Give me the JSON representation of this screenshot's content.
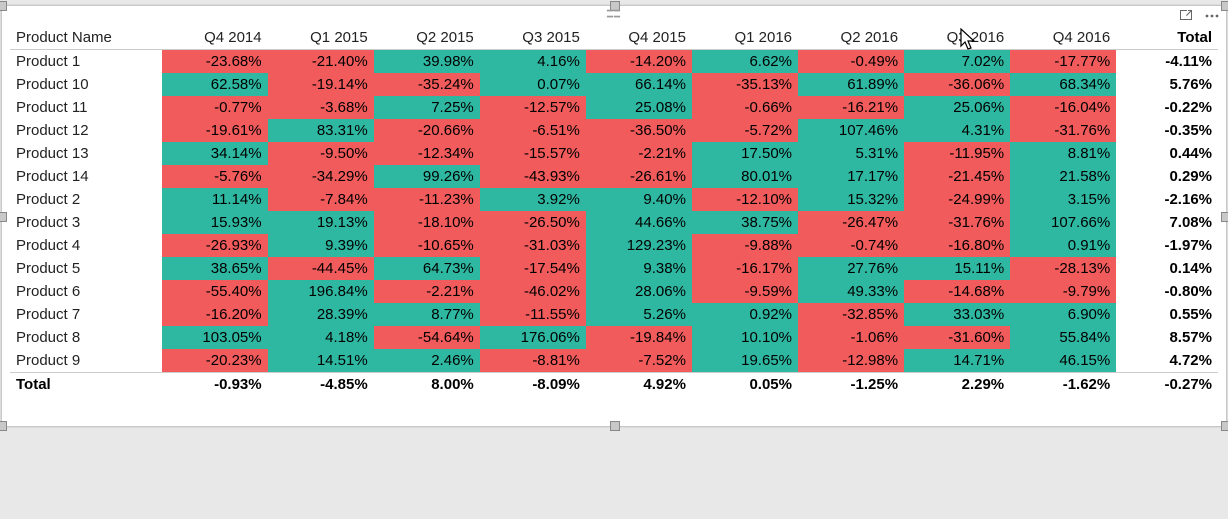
{
  "type": "table",
  "pos_color": "#2fb8a1",
  "neg_color": "#f15b5b",
  "cell_text_color": "#000000",
  "total_text_color": "#000000",
  "row_header": "Product Name",
  "total_label": "Total",
  "columns": [
    "Q4 2014",
    "Q1 2015",
    "Q2 2015",
    "Q3 2015",
    "Q4 2015",
    "Q1 2016",
    "Q2 2016",
    "Q3 2016",
    "Q4 2016"
  ],
  "rows": [
    {
      "name": "Product 1",
      "v": [
        -23.68,
        -21.4,
        39.98,
        4.16,
        -14.2,
        6.62,
        -0.49,
        7.02,
        -17.77
      ],
      "t": -4.11
    },
    {
      "name": "Product 10",
      "v": [
        62.58,
        -19.14,
        -35.24,
        0.07,
        66.14,
        -35.13,
        61.89,
        -36.06,
        68.34
      ],
      "t": 5.76
    },
    {
      "name": "Product 11",
      "v": [
        -0.77,
        -3.68,
        7.25,
        -12.57,
        25.08,
        -0.66,
        -16.21,
        25.06,
        -16.04
      ],
      "t": -0.22
    },
    {
      "name": "Product 12",
      "v": [
        -19.61,
        83.31,
        -20.66,
        -6.51,
        -36.5,
        -5.72,
        107.46,
        4.31,
        -31.76
      ],
      "t": -0.35
    },
    {
      "name": "Product 13",
      "v": [
        34.14,
        -9.5,
        -12.34,
        -15.57,
        -2.21,
        17.5,
        5.31,
        -11.95,
        8.81
      ],
      "t": 0.44
    },
    {
      "name": "Product 14",
      "v": [
        -5.76,
        -34.29,
        99.26,
        -43.93,
        -26.61,
        80.01,
        17.17,
        -21.45,
        21.58
      ],
      "t": 0.29
    },
    {
      "name": "Product 2",
      "v": [
        11.14,
        -7.84,
        -11.23,
        3.92,
        9.4,
        -12.1,
        15.32,
        -24.99,
        3.15
      ],
      "t": -2.16
    },
    {
      "name": "Product 3",
      "v": [
        15.93,
        19.13,
        -18.1,
        -26.5,
        44.66,
        38.75,
        -26.47,
        -31.76,
        107.66
      ],
      "t": 7.08
    },
    {
      "name": "Product 4",
      "v": [
        -26.93,
        9.39,
        -10.65,
        -31.03,
        129.23,
        -9.88,
        -0.74,
        -16.8,
        0.91
      ],
      "t": -1.97
    },
    {
      "name": "Product 5",
      "v": [
        38.65,
        -44.45,
        64.73,
        -17.54,
        9.38,
        -16.17,
        27.76,
        15.11,
        -28.13
      ],
      "t": 0.14
    },
    {
      "name": "Product 6",
      "v": [
        -55.4,
        196.84,
        -2.21,
        -46.02,
        28.06,
        -9.59,
        49.33,
        -14.68,
        -9.79
      ],
      "t": -0.8
    },
    {
      "name": "Product 7",
      "v": [
        -16.2,
        28.39,
        8.77,
        -11.55,
        5.26,
        0.92,
        -32.85,
        33.03,
        6.9
      ],
      "t": 0.55
    },
    {
      "name": "Product 8",
      "v": [
        103.05,
        4.18,
        -54.64,
        176.06,
        -19.84,
        10.1,
        -1.06,
        -31.6,
        55.84
      ],
      "t": 8.57
    },
    {
      "name": "Product 9",
      "v": [
        -20.23,
        14.51,
        2.46,
        -8.81,
        -7.52,
        19.65,
        -12.98,
        14.71,
        46.15
      ],
      "t": 4.72
    }
  ],
  "col_totals": [
    -0.93,
    -4.85,
    8.0,
    -8.09,
    4.92,
    0.05,
    -1.25,
    2.29,
    -1.62
  ],
  "grand_total": -0.27
}
